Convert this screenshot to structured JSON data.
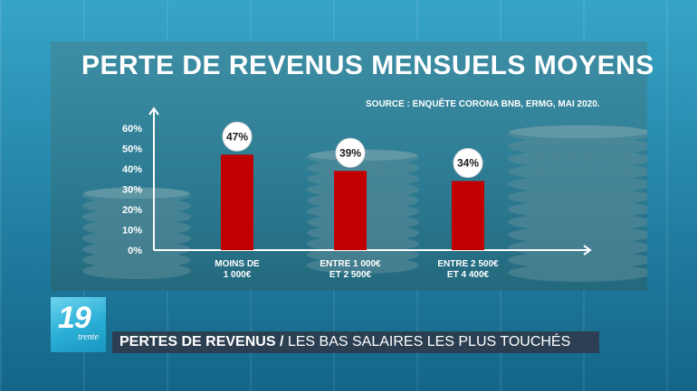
{
  "chart_data": {
    "type": "bar",
    "title": "PERTE DE REVENUS MENSUELS MOYENS",
    "source": "SOURCE : ENQUÊTE CORONA BNB, ERMG, MAI 2020.",
    "categories": [
      [
        "MOINS DE",
        "1 000€"
      ],
      [
        "ENTRE 1 000€",
        "ET 2 500€"
      ],
      [
        "ENTRE 2 500€",
        "ET 4 400€"
      ]
    ],
    "values": [
      47,
      39,
      34
    ],
    "value_labels": [
      "47%",
      "39%",
      "34%"
    ],
    "y_ticks": [
      "0%",
      "10%",
      "20%",
      "30%",
      "40%",
      "50%",
      "60%"
    ],
    "ylim": [
      0,
      60
    ],
    "bar_color": "#c00000",
    "grid": false
  },
  "lower_third": {
    "logo_number": "19",
    "logo_sub": "trente",
    "headline_bold": "PERTES DE REVENUS",
    "separator": "/",
    "headline_rest": "LES BAS SALAIRES LES PLUS TOUCHÉS"
  }
}
